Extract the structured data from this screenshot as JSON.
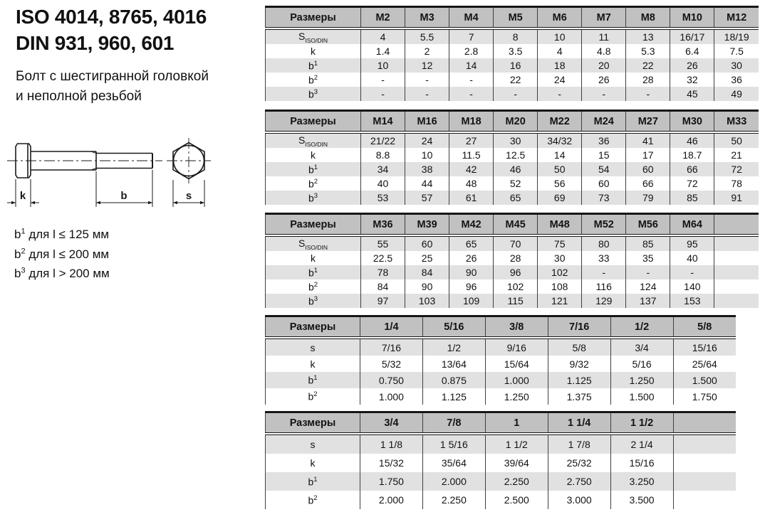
{
  "header": {
    "title_line1": "ISO 4014, 8765, 4016",
    "title_line2": "DIN 931, 960, 601",
    "subtitle_line1": "Болт с шестигранной головкой",
    "subtitle_line2": "и неполной резьбой"
  },
  "diagram": {
    "k_label": "k",
    "b_label": "b",
    "s_label": "s"
  },
  "footnotes": [
    {
      "base": "b",
      "sup": "1",
      "text": " для l ≤ 125 мм"
    },
    {
      "base": "b",
      "sup": "2",
      "text": " для l ≤ 200 мм"
    },
    {
      "base": "b",
      "sup": "3",
      "text": " для l > 200 мм"
    }
  ],
  "colors": {
    "header_row_bg": "#c1c1c1",
    "shaded_row_bg": "#e1e1e1",
    "border": "#161616",
    "text": "#131313"
  },
  "tables": [
    {
      "name": "metric-table-m2-m12",
      "corner_label": "Размеры",
      "label_col_width": 134,
      "size_class": "t-small",
      "trailing_empty_cols": 0,
      "columns": [
        "M2",
        "M3",
        "M4",
        "M5",
        "M6",
        "M7",
        "M8",
        "M10",
        "M12"
      ],
      "rows": [
        {
          "label": {
            "base": "S",
            "sub": "ISO/DIN"
          },
          "shaded": true,
          "values": [
            "4",
            "5.5",
            "7",
            "8",
            "10",
            "11",
            "13",
            "16/17",
            "18/19"
          ]
        },
        {
          "label": {
            "base": "k"
          },
          "shaded": false,
          "values": [
            "1.4",
            "2",
            "2.8",
            "3.5",
            "4",
            "4.8",
            "5.3",
            "6.4",
            "7.5"
          ]
        },
        {
          "label": {
            "base": "b",
            "sup": "1"
          },
          "shaded": true,
          "values": [
            "10",
            "12",
            "14",
            "16",
            "18",
            "20",
            "22",
            "26",
            "30"
          ]
        },
        {
          "label": {
            "base": "b",
            "sup": "2"
          },
          "shaded": false,
          "values": [
            "-",
            "-",
            "-",
            "22",
            "24",
            "26",
            "28",
            "32",
            "36"
          ]
        },
        {
          "label": {
            "base": "b",
            "sup": "3"
          },
          "shaded": true,
          "values": [
            "-",
            "-",
            "-",
            "-",
            "-",
            "-",
            "-",
            "45",
            "49"
          ]
        }
      ]
    },
    {
      "name": "metric-table-m14-m33",
      "corner_label": "Размеры",
      "label_col_width": 134,
      "size_class": "t-small",
      "trailing_empty_cols": 0,
      "columns": [
        "M14",
        "M16",
        "M18",
        "M20",
        "M22",
        "M24",
        "M27",
        "M30",
        "M33"
      ],
      "rows": [
        {
          "label": {
            "base": "S",
            "sub": "ISO/DIN"
          },
          "shaded": true,
          "values": [
            "21/22",
            "24",
            "27",
            "30",
            "34/32",
            "36",
            "41",
            "46",
            "50"
          ]
        },
        {
          "label": {
            "base": "k"
          },
          "shaded": false,
          "values": [
            "8.8",
            "10",
            "11.5",
            "12.5",
            "14",
            "15",
            "17",
            "18.7",
            "21"
          ]
        },
        {
          "label": {
            "base": "b",
            "sup": "1"
          },
          "shaded": true,
          "values": [
            "34",
            "38",
            "42",
            "46",
            "50",
            "54",
            "60",
            "66",
            "72"
          ]
        },
        {
          "label": {
            "base": "b",
            "sup": "2"
          },
          "shaded": false,
          "values": [
            "40",
            "44",
            "48",
            "52",
            "56",
            "60",
            "66",
            "72",
            "78"
          ]
        },
        {
          "label": {
            "base": "b",
            "sup": "3"
          },
          "shaded": true,
          "values": [
            "53",
            "57",
            "61",
            "65",
            "69",
            "73",
            "79",
            "85",
            "91"
          ]
        }
      ]
    },
    {
      "name": "metric-table-m36-m64",
      "corner_label": "Размеры",
      "label_col_width": 134,
      "size_class": "t-small",
      "trailing_empty_cols": 1,
      "columns": [
        "M36",
        "M39",
        "M42",
        "M45",
        "M48",
        "M52",
        "M56",
        "M64"
      ],
      "rows": [
        {
          "label": {
            "base": "S",
            "sub": "ISO/DIN"
          },
          "shaded": true,
          "values": [
            "55",
            "60",
            "65",
            "70",
            "75",
            "80",
            "85",
            "95"
          ]
        },
        {
          "label": {
            "base": "k"
          },
          "shaded": false,
          "values": [
            "22.5",
            "25",
            "26",
            "28",
            "30",
            "33",
            "35",
            "40"
          ]
        },
        {
          "label": {
            "base": "b",
            "sup": "1"
          },
          "shaded": true,
          "values": [
            "78",
            "84",
            "90",
            "96",
            "102",
            "-",
            "-",
            "-"
          ]
        },
        {
          "label": {
            "base": "b",
            "sup": "2"
          },
          "shaded": false,
          "values": [
            "84",
            "90",
            "96",
            "102",
            "108",
            "116",
            "124",
            "140"
          ]
        },
        {
          "label": {
            "base": "b",
            "sup": "3"
          },
          "shaded": true,
          "values": [
            "97",
            "103",
            "109",
            "115",
            "121",
            "129",
            "137",
            "153"
          ]
        }
      ]
    },
    {
      "name": "imperial-table-quarter-to-fiveeighths",
      "corner_label": "Размеры",
      "label_col_width": 133,
      "size_class": "t-mid",
      "trailing_empty_cols": 0,
      "columns": [
        "1/4",
        "5/16",
        "3/8",
        "7/16",
        "1/2",
        "5/8"
      ],
      "rows": [
        {
          "label": {
            "base": "s"
          },
          "shaded": true,
          "values": [
            "7/16",
            "1/2",
            "9/16",
            "5/8",
            "3/4",
            "15/16"
          ]
        },
        {
          "label": {
            "base": "k"
          },
          "shaded": false,
          "values": [
            "5/32",
            "13/64",
            "15/64",
            "9/32",
            "5/16",
            "25/64"
          ]
        },
        {
          "label": {
            "base": "b",
            "sup": "1"
          },
          "shaded": true,
          "values": [
            "0.750",
            "0.875",
            "1.000",
            "1.125",
            "1.250",
            "1.500"
          ]
        },
        {
          "label": {
            "base": "b",
            "sup": "2"
          },
          "shaded": false,
          "values": [
            "1.000",
            "1.125",
            "1.250",
            "1.375",
            "1.500",
            "1.750"
          ]
        }
      ]
    },
    {
      "name": "imperial-table-threequarters-to-oneandhalf",
      "corner_label": "Размеры",
      "label_col_width": 133,
      "size_class": "t-big",
      "trailing_empty_cols": 1,
      "columns": [
        "3/4",
        "7/8",
        "1",
        "1 1/4",
        "1 1/2"
      ],
      "rows": [
        {
          "label": {
            "base": "s"
          },
          "shaded": true,
          "values": [
            "1 1/8",
            "1 5/16",
            "1 1/2",
            "1 7/8",
            "2 1/4"
          ]
        },
        {
          "label": {
            "base": "k"
          },
          "shaded": false,
          "values": [
            "15/32",
            "35/64",
            "39/64",
            "25/32",
            "15/16"
          ]
        },
        {
          "label": {
            "base": "b",
            "sup": "1"
          },
          "shaded": true,
          "values": [
            "1.750",
            "2.000",
            "2.250",
            "2.750",
            "3.250"
          ]
        },
        {
          "label": {
            "base": "b",
            "sup": "2"
          },
          "shaded": false,
          "values": [
            "2.000",
            "2.250",
            "2.500",
            "3.000",
            "3.500"
          ]
        }
      ]
    }
  ]
}
